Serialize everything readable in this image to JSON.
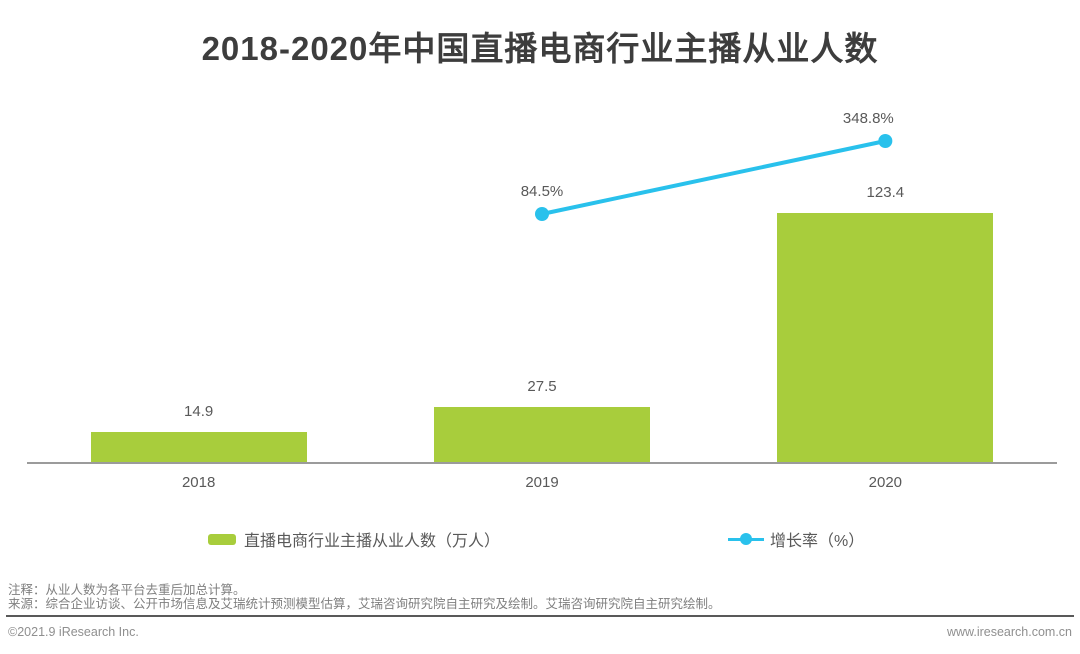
{
  "title": "2018-2020年中国直播电商行业主播从业人数",
  "chart_data": {
    "type": "bar",
    "categories": [
      "2018",
      "2019",
      "2020"
    ],
    "series": [
      {
        "name": "直播电商行业主播从业人数（万人）",
        "kind": "bar",
        "values": [
          14.9,
          27.5,
          123.4
        ],
        "labels": [
          "14.9",
          "27.5",
          "123.4"
        ],
        "color": "#a8cd3c"
      },
      {
        "name": "增长率（%）",
        "kind": "line",
        "values": [
          null,
          84.5,
          348.8
        ],
        "labels": [
          "",
          "84.5%",
          "348.8%"
        ],
        "color": "#29c1ec"
      }
    ],
    "title": "2018-2020年中国直播电商行业主播从业人数",
    "xlabel": "",
    "ylabel": "",
    "y_axis_visible": false,
    "grid": false,
    "legend_position": "bottom"
  },
  "legend": {
    "bar_label": "直播电商行业主播从业人数（万人）",
    "line_label": "增长率（%）"
  },
  "notes": {
    "note1": "注释：从业人数为各平台去重后加总计算。",
    "note2": "来源：综合企业访谈、公开市场信息及艾瑞统计预测模型估算，艾瑞咨询研究院自主研究及绘制。艾瑞咨询研究院自主研究绘制。"
  },
  "footer": {
    "left": "©2021.9 iResearch Inc.",
    "right": "www.iresearch.com.cn"
  },
  "colors": {
    "bar": "#a8cd3c",
    "line": "#29c1ec",
    "title": "#3d3d3d",
    "label": "#595959",
    "axis": "#9b9b9b"
  }
}
